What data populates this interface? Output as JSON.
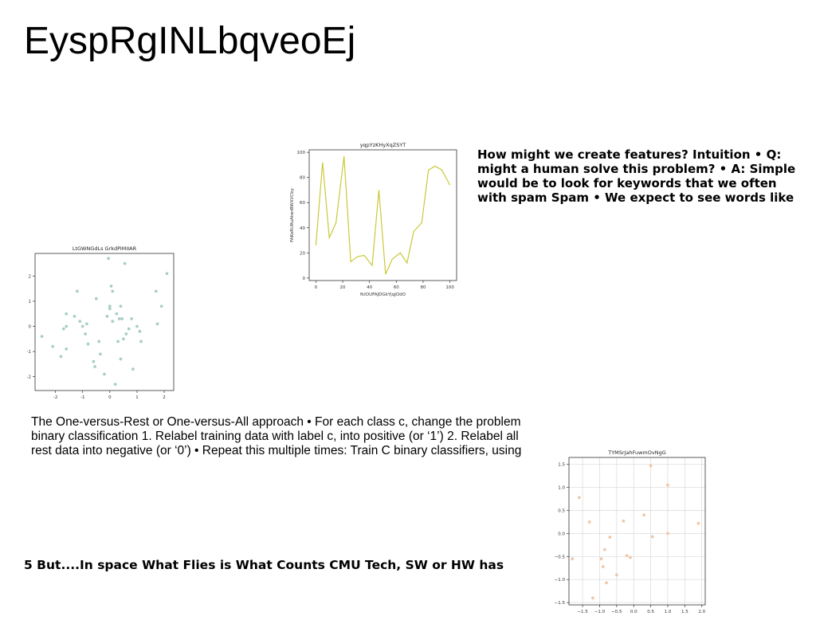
{
  "slide": {
    "title": "EyspRgINLbqveoEj",
    "text_right": [
      "How might we create features? Intuition • Q:",
      "might a human solve this problem? • A: Simple",
      "would be to look for keywords that we often",
      "with spam Spam • We expect to see words like"
    ],
    "text_middle": [
      "The One-versus-Rest or One-versus-All approach • For each class c, change the problem",
      "binary classification 1. Relabel training data with label c, into positive (or ‘1’) 2. Relabel all",
      "rest data into negative (or ‘0’) • Repeat this multiple times: Train C binary classifiers, using"
    ],
    "text_bottom": "5 But....In space What Flies is What Counts CMU Tech, SW or HW has"
  },
  "chart_data": [
    {
      "id": "line",
      "type": "line",
      "title": "yqpYzKHyXqZSYT",
      "xlabel": "fkIOUFAJDGkYjqJOdO",
      "ylabel": "FAKeRURuAtwrBWXVCby",
      "xlim": [
        -5,
        105
      ],
      "ylim": [
        -2,
        102
      ],
      "xticks": [
        0,
        20,
        40,
        60,
        80,
        100
      ],
      "yticks": [
        0,
        20,
        40,
        60,
        80,
        100
      ],
      "grid": false,
      "color": "#c9c93a",
      "series": [
        {
          "x": [
            0,
            5,
            10,
            15,
            21,
            26,
            31,
            36,
            42,
            47,
            52,
            57,
            63,
            68,
            73,
            79,
            84,
            89,
            94,
            100
          ],
          "values": [
            26,
            92,
            32,
            44,
            97,
            13,
            17,
            18,
            10,
            70,
            3,
            15,
            20,
            12,
            37,
            44,
            86,
            89,
            86,
            74
          ]
        }
      ]
    },
    {
      "id": "scatter-left",
      "type": "scatter",
      "title": "LtGWNGdLs GrkdPiMIIAR",
      "xlim": [
        -2.75,
        2.35
      ],
      "ylim": [
        -2.55,
        2.9
      ],
      "xticks": [
        -2,
        -1,
        0,
        1,
        2
      ],
      "yticks": [
        -2,
        -1,
        0,
        1,
        2
      ],
      "grid": false,
      "color": "#a8cfc7",
      "points": [
        [
          -2.5,
          -0.4
        ],
        [
          -2.1,
          -0.8
        ],
        [
          -1.8,
          -1.2
        ],
        [
          -1.7,
          -0.1
        ],
        [
          -1.6,
          0.0
        ],
        [
          -1.6,
          0.5
        ],
        [
          -1.6,
          -0.9
        ],
        [
          -1.3,
          0.4
        ],
        [
          -1.2,
          1.4
        ],
        [
          -1.1,
          0.2
        ],
        [
          -1.0,
          0.0
        ],
        [
          -0.9,
          -0.3
        ],
        [
          -0.85,
          0.1
        ],
        [
          -0.8,
          -0.7
        ],
        [
          -0.6,
          -1.4
        ],
        [
          -0.55,
          -1.6
        ],
        [
          -0.5,
          1.1
        ],
        [
          -0.4,
          -0.6
        ],
        [
          -0.35,
          -1.1
        ],
        [
          -0.2,
          -1.9
        ],
        [
          -0.1,
          0.4
        ],
        [
          -0.05,
          2.7
        ],
        [
          0.0,
          0.8
        ],
        [
          0.0,
          0.7
        ],
        [
          0.05,
          1.6
        ],
        [
          0.1,
          1.4
        ],
        [
          0.1,
          0.2
        ],
        [
          0.2,
          -2.3
        ],
        [
          0.25,
          0.5
        ],
        [
          0.3,
          -0.6
        ],
        [
          0.35,
          0.3
        ],
        [
          0.4,
          0.8
        ],
        [
          0.4,
          -1.3
        ],
        [
          0.45,
          0.3
        ],
        [
          0.5,
          -0.5
        ],
        [
          0.55,
          2.5
        ],
        [
          0.6,
          -0.3
        ],
        [
          0.7,
          -0.1
        ],
        [
          0.8,
          0.3
        ],
        [
          0.85,
          -1.7
        ],
        [
          1.0,
          0.0
        ],
        [
          1.1,
          -0.2
        ],
        [
          1.15,
          -0.6
        ],
        [
          1.7,
          1.4
        ],
        [
          1.75,
          0.1
        ],
        [
          1.9,
          0.8
        ],
        [
          2.1,
          2.1
        ]
      ]
    },
    {
      "id": "scatter-right",
      "type": "scatter",
      "title": "TYMSrJahFuwmOvNgG",
      "xlim": [
        -1.9,
        2.1
      ],
      "ylim": [
        -1.55,
        1.65
      ],
      "xticks": [
        -1.5,
        -1.0,
        -0.5,
        0.0,
        0.5,
        1.0,
        1.5,
        2.0
      ],
      "xticklabels": [
        "−1.5",
        "−1.0",
        "−0.5",
        "0.0",
        "0.5",
        "1.0",
        "1.5",
        "2.0"
      ],
      "yticks": [
        -1.5,
        -1.0,
        -0.5,
        0.0,
        0.5,
        1.0,
        1.5
      ],
      "yticklabels": [
        "−1.5",
        "−1.0",
        "−0.5",
        "0.0",
        "0.5",
        "1.0",
        "1.5"
      ],
      "grid": true,
      "color": "#f1c7a6",
      "points": [
        [
          -1.8,
          -0.55
        ],
        [
          -1.6,
          0.78
        ],
        [
          -1.3,
          0.25
        ],
        [
          -1.2,
          -1.4
        ],
        [
          -0.95,
          -0.55
        ],
        [
          -0.9,
          -0.72
        ],
        [
          -0.85,
          -0.35
        ],
        [
          -0.8,
          -1.07
        ],
        [
          -0.7,
          -0.08
        ],
        [
          -0.5,
          -0.9
        ],
        [
          -0.3,
          0.27
        ],
        [
          -0.2,
          -0.48
        ],
        [
          -0.1,
          -0.52
        ],
        [
          0.3,
          0.4
        ],
        [
          0.5,
          1.47
        ],
        [
          0.55,
          -0.07
        ],
        [
          1.0,
          1.05
        ],
        [
          1.0,
          0.0
        ],
        [
          1.9,
          0.22
        ]
      ]
    }
  ]
}
